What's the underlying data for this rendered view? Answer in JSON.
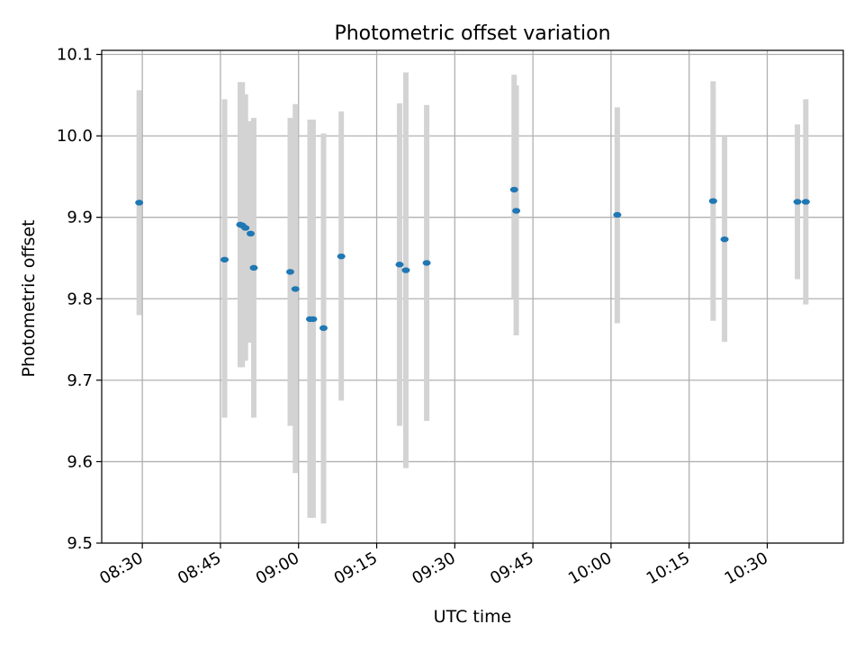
{
  "chart_data": {
    "type": "scatter",
    "title": "Photometric offset variation",
    "xlabel": "UTC time",
    "ylabel": "Photometric offset",
    "x_ticks": [
      "08:30",
      "08:45",
      "09:00",
      "09:15",
      "09:30",
      "09:45",
      "10:00",
      "10:15",
      "10:30"
    ],
    "y_ticks": [
      "9.5",
      "9.6",
      "9.7",
      "9.8",
      "9.9",
      "10.0",
      "10.1"
    ],
    "xlim": [
      "08:22:12",
      "10:44:36"
    ],
    "ylim": [
      9.5,
      10.105
    ],
    "grid": true,
    "colors": {
      "points": "#1f77b4",
      "errorbars": "#d3d3d3",
      "grid": "#b0b0b0"
    },
    "points": [
      {
        "x": "08:29:24",
        "y": 9.918,
        "ylo": 9.78,
        "yhi": 10.056
      },
      {
        "x": "08:45:48",
        "y": 9.848,
        "ylo": 9.654,
        "yhi": 10.045
      },
      {
        "x": "08:48:48",
        "y": 9.891,
        "ylo": 9.716,
        "yhi": 10.066
      },
      {
        "x": "08:49:12",
        "y": 9.89,
        "ylo": 9.716,
        "yhi": 10.066
      },
      {
        "x": "08:49:48",
        "y": 9.887,
        "ylo": 9.724,
        "yhi": 10.051
      },
      {
        "x": "08:50:48",
        "y": 9.88,
        "ylo": 9.746,
        "yhi": 10.018
      },
      {
        "x": "08:51:24",
        "y": 9.838,
        "ylo": 9.654,
        "yhi": 10.022
      },
      {
        "x": "08:58:24",
        "y": 9.833,
        "ylo": 9.644,
        "yhi": 10.022
      },
      {
        "x": "08:59:24",
        "y": 9.812,
        "ylo": 9.586,
        "yhi": 10.039
      },
      {
        "x": "09:02:12",
        "y": 9.775,
        "ylo": 9.531,
        "yhi": 10.02
      },
      {
        "x": "09:02:48",
        "y": 9.775,
        "ylo": 9.531,
        "yhi": 10.02
      },
      {
        "x": "09:04:48",
        "y": 9.764,
        "ylo": 9.524,
        "yhi": 10.003
      },
      {
        "x": "09:08:12",
        "y": 9.852,
        "ylo": 9.675,
        "yhi": 10.03
      },
      {
        "x": "09:19:24",
        "y": 9.842,
        "ylo": 9.644,
        "yhi": 10.04
      },
      {
        "x": "09:20:36",
        "y": 9.835,
        "ylo": 9.592,
        "yhi": 10.078
      },
      {
        "x": "09:24:36",
        "y": 9.844,
        "ylo": 9.65,
        "yhi": 10.038
      },
      {
        "x": "09:41:24",
        "y": 9.934,
        "ylo": 9.8,
        "yhi": 10.075
      },
      {
        "x": "09:41:48",
        "y": 9.908,
        "ylo": 9.755,
        "yhi": 10.062
      },
      {
        "x": "10:01:12",
        "y": 9.903,
        "ylo": 9.77,
        "yhi": 10.035
      },
      {
        "x": "10:19:36",
        "y": 9.92,
        "ylo": 9.773,
        "yhi": 10.067
      },
      {
        "x": "10:21:48",
        "y": 9.873,
        "ylo": 9.747,
        "yhi": 10.0
      },
      {
        "x": "10:35:48",
        "y": 9.919,
        "ylo": 9.824,
        "yhi": 10.014
      },
      {
        "x": "10:37:24",
        "y": 9.919,
        "ylo": 9.793,
        "yhi": 10.045
      }
    ]
  }
}
